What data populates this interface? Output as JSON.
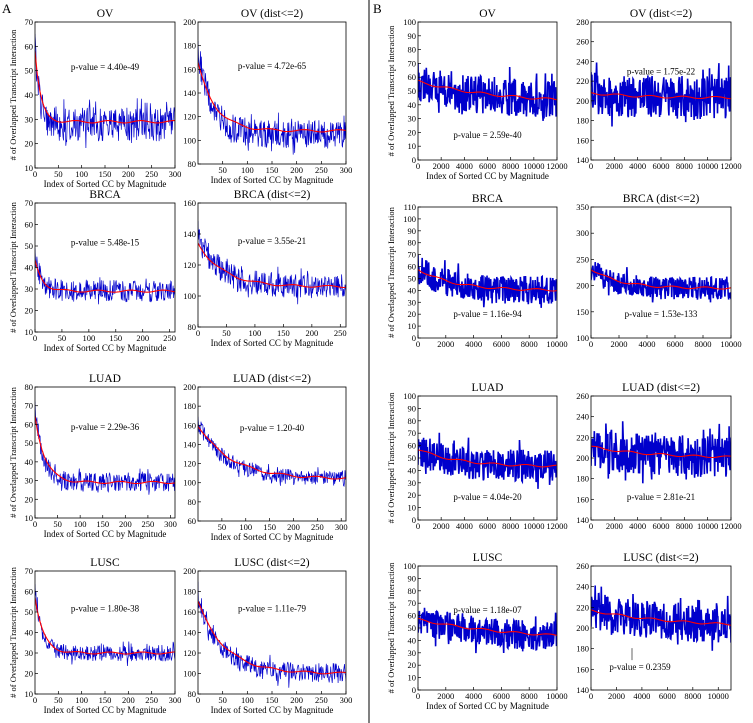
{
  "figure": {
    "panel_labels": [
      "A",
      "B"
    ],
    "shared_xlabel": "Index of Sorted CC by Magnitude",
    "shared_ylabel": "# of Overlapped Transcript Interaction",
    "colors": {
      "noise": "#0000cc",
      "trend": "#ff0000",
      "axis": "#000000"
    }
  },
  "chart_data": [
    {
      "id": "A-OV",
      "type": "line",
      "title": "OV",
      "xlabel": "Index of Sorted CC by Magnitude",
      "ylabel": "# of Overlapped Transcript Interaction",
      "xlim": [
        0,
        300
      ],
      "ylim": [
        10,
        70
      ],
      "xticks": [
        "0",
        "50",
        "100",
        "150",
        "200",
        "250",
        "300"
      ],
      "yticks": [
        "10",
        "20",
        "30",
        "40",
        "50",
        "60",
        "70"
      ],
      "annotation": "p-value = 4.40e-49",
      "series": [
        {
          "style": "noise",
          "start": 60,
          "end": 28,
          "decay": 10,
          "noise": 7
        },
        {
          "style": "trend",
          "start": 58,
          "end": 29,
          "decay": 12
        }
      ]
    },
    {
      "id": "A-OV-dist",
      "type": "line",
      "title": "OV (dist<=2)",
      "xlabel": "Index of Sorted CC by Magnitude",
      "ylabel": "",
      "xlim": [
        0,
        300
      ],
      "ylim": [
        80,
        200
      ],
      "xticks": [
        "50",
        "100",
        "150",
        "200",
        "250",
        "300"
      ],
      "yticks": [
        "80",
        "100",
        "120",
        "140",
        "160",
        "180",
        "200"
      ],
      "annotation": "p-value = 4.72e-65",
      "series": [
        {
          "style": "noise",
          "start": 175,
          "end": 105,
          "decay": 28,
          "noise": 12
        },
        {
          "style": "trend",
          "start": 165,
          "end": 108,
          "decay": 35
        }
      ]
    },
    {
      "id": "A-BRCA",
      "type": "line",
      "title": "BRCA",
      "xlabel": "Index of Sorted CC by Magnitude",
      "ylabel": "# of Overlapped Transcript Interaction",
      "xlim": [
        0,
        260
      ],
      "ylim": [
        10,
        70
      ],
      "xticks": [
        "0",
        "50",
        "100",
        "150",
        "200",
        "250"
      ],
      "yticks": [
        "10",
        "20",
        "30",
        "40",
        "50",
        "60",
        "70"
      ],
      "annotation": "p-value = 5.48e-15",
      "series": [
        {
          "style": "noise",
          "start": 45,
          "end": 29,
          "decay": 12,
          "noise": 5
        },
        {
          "style": "trend",
          "start": 43,
          "end": 29,
          "decay": 14
        }
      ]
    },
    {
      "id": "A-BRCA-dist",
      "type": "line",
      "title": "BRCA (dist<=2)",
      "xlabel": "Index of Sorted CC by Magnitude",
      "ylabel": "",
      "xlim": [
        0,
        260
      ],
      "ylim": [
        80,
        160
      ],
      "xticks": [
        "0",
        "50",
        "100",
        "150",
        "200",
        "250"
      ],
      "yticks": [
        "80",
        "100",
        "120",
        "140",
        "160"
      ],
      "annotation": "p-value = 3.55e-21",
      "series": [
        {
          "style": "noise",
          "start": 138,
          "end": 106,
          "decay": 40,
          "noise": 8
        },
        {
          "style": "trend",
          "start": 134,
          "end": 106,
          "decay": 45
        }
      ]
    },
    {
      "id": "A-LUAD",
      "type": "line",
      "title": "LUAD",
      "xlabel": "Index of Sorted CC by Magnitude",
      "ylabel": "# of Overlapped Transcript Interaction",
      "xlim": [
        0,
        310
      ],
      "ylim": [
        10,
        80
      ],
      "xticks": [
        "0",
        "50",
        "100",
        "150",
        "200",
        "250",
        "300"
      ],
      "yticks": [
        "10",
        "20",
        "30",
        "40",
        "50",
        "60",
        "70",
        "80"
      ],
      "annotation": "p-value = 2.29e-36",
      "series": [
        {
          "style": "noise",
          "start": 68,
          "end": 29,
          "decay": 18,
          "noise": 5
        },
        {
          "style": "trend",
          "start": 65,
          "end": 29,
          "decay": 22
        }
      ]
    },
    {
      "id": "A-LUAD-dist",
      "type": "line",
      "title": "LUAD (dist<=2)",
      "xlabel": "Index of Sorted CC by Magnitude",
      "ylabel": "",
      "xlim": [
        0,
        310
      ],
      "ylim": [
        60,
        200
      ],
      "xticks": [
        "50",
        "100",
        "150",
        "200",
        "250",
        "300"
      ],
      "yticks": [
        "60",
        "80",
        "100",
        "120",
        "140",
        "160",
        "180",
        "200"
      ],
      "annotation": "p-value = 1.20-40",
      "series": [
        {
          "style": "noise",
          "start": 162,
          "end": 104,
          "decay": 60,
          "noise": 8
        },
        {
          "style": "trend",
          "start": 160,
          "end": 104,
          "decay": 70
        }
      ]
    },
    {
      "id": "A-LUSC",
      "type": "line",
      "title": "LUSC",
      "xlabel": "Index of Sorted CC by Magnitude",
      "ylabel": "# of Overlapped Transcript Interaction",
      "xlim": [
        0,
        300
      ],
      "ylim": [
        10,
        70
      ],
      "xticks": [
        "0",
        "50",
        "100",
        "150",
        "200",
        "250",
        "300"
      ],
      "yticks": [
        "10",
        "20",
        "30",
        "40",
        "50",
        "60",
        "70"
      ],
      "annotation": "p-value = 1.80e-38",
      "series": [
        {
          "style": "noise",
          "start": 60,
          "end": 30,
          "decay": 15,
          "noise": 4
        },
        {
          "style": "trend",
          "start": 57,
          "end": 30,
          "decay": 18
        }
      ]
    },
    {
      "id": "A-LUSC-dist",
      "type": "line",
      "title": "LUSC (dist<=2)",
      "xlabel": "Index of Sorted CC by Magnitude",
      "ylabel": "",
      "xlim": [
        0,
        300
      ],
      "ylim": [
        80,
        200
      ],
      "xticks": [
        "0",
        "50",
        "100",
        "150",
        "200",
        "250",
        "300"
      ],
      "yticks": [
        "80",
        "100",
        "120",
        "140",
        "160",
        "180",
        "200"
      ],
      "annotation": "p-value = 1.11e-79",
      "series": [
        {
          "style": "noise",
          "start": 175,
          "end": 100,
          "decay": 45,
          "noise": 10
        },
        {
          "style": "trend",
          "start": 170,
          "end": 100,
          "decay": 55
        }
      ]
    },
    {
      "id": "B-OV",
      "type": "line",
      "title": "OV",
      "xlabel": "Index of Sorted CC by Magnitude",
      "ylabel": "# of Overlapped Transcript Interaction",
      "xlim": [
        0,
        12000
      ],
      "ylim": [
        0,
        100
      ],
      "xticks": [
        "0",
        "2000",
        "4000",
        "6000",
        "8000",
        "10000",
        "12000"
      ],
      "yticks": [
        "0",
        "10",
        "20",
        "30",
        "40",
        "50",
        "60",
        "70",
        "80",
        "90",
        "100"
      ],
      "annotation": "p-value = 2.59e-40",
      "series": [
        {
          "style": "noise",
          "start": 57,
          "end": 41,
          "decay": 6000,
          "noise": 14
        },
        {
          "style": "trend",
          "start": 57,
          "end": 41,
          "decay": 7000
        }
      ]
    },
    {
      "id": "B-OV-dist",
      "type": "line",
      "title": "OV (dist<=2)",
      "xlabel": "",
      "ylabel": "",
      "xlim": [
        0,
        12000
      ],
      "ylim": [
        140,
        280
      ],
      "xticks": [
        "0",
        "2000",
        "4000",
        "6000",
        "8000",
        "10000",
        "12000"
      ],
      "yticks": [
        "140",
        "160",
        "180",
        "200",
        "220",
        "240",
        "260",
        "280"
      ],
      "annotation": "p-value = 1.75e-22",
      "series": [
        {
          "style": "noise",
          "start": 208,
          "end": 203,
          "decay": 4000,
          "noise": 22
        },
        {
          "style": "trend",
          "start": 208,
          "end": 203,
          "decay": 4000
        }
      ]
    },
    {
      "id": "B-BRCA",
      "type": "line",
      "title": "BRCA",
      "xlabel": "",
      "ylabel": "# of Overlapped Transcript Interaction",
      "xlim": [
        0,
        10000
      ],
      "ylim": [
        0,
        110
      ],
      "xticks": [
        "0",
        "2000",
        "4000",
        "6000",
        "8000",
        "10000"
      ],
      "yticks": [
        "0",
        "10",
        "20",
        "30",
        "40",
        "50",
        "60",
        "70",
        "80",
        "90",
        "100",
        "110"
      ],
      "annotation": "p-value = 1.16e-94",
      "series": [
        {
          "style": "noise",
          "start": 58,
          "end": 40,
          "decay": 2000,
          "noise": 12
        },
        {
          "style": "trend",
          "start": 58,
          "end": 40,
          "decay": 2500
        }
      ]
    },
    {
      "id": "B-BRCA-dist",
      "type": "line",
      "title": "BRCA (dist<=2)",
      "xlabel": "",
      "ylabel": "",
      "xlim": [
        0,
        10000
      ],
      "ylim": [
        100,
        350
      ],
      "xticks": [
        "0",
        "2000",
        "4000",
        "6000",
        "8000",
        "10000"
      ],
      "yticks": [
        "100",
        "150",
        "200",
        "250",
        "300",
        "350"
      ],
      "annotation": "p-value = 1.53e-133",
      "series": [
        {
          "style": "noise",
          "start": 232,
          "end": 195,
          "decay": 1500,
          "noise": 22
        },
        {
          "style": "trend",
          "start": 232,
          "end": 195,
          "decay": 2000
        }
      ]
    },
    {
      "id": "B-LUAD",
      "type": "line",
      "title": "LUAD",
      "xlabel": "",
      "ylabel": "# of Overlapped Transcript Interaction",
      "xlim": [
        0,
        12000
      ],
      "ylim": [
        0,
        100
      ],
      "xticks": [
        "0",
        "2000",
        "4000",
        "6000",
        "8000",
        "10000",
        "12000"
      ],
      "yticks": [
        "0",
        "10",
        "20",
        "30",
        "40",
        "50",
        "60",
        "70",
        "80",
        "90",
        "100"
      ],
      "annotation": "p-value = 4.04e-20",
      "series": [
        {
          "style": "noise",
          "start": 57,
          "end": 43,
          "decay": 3000,
          "noise": 13
        },
        {
          "style": "trend",
          "start": 57,
          "end": 43,
          "decay": 3500
        }
      ]
    },
    {
      "id": "B-LUAD-dist",
      "type": "line",
      "title": "LUAD (dist<=2)",
      "xlabel": "",
      "ylabel": "",
      "xlim": [
        0,
        12000
      ],
      "ylim": [
        140,
        260
      ],
      "xticks": [
        "0",
        "2000",
        "4000",
        "6000",
        "8000",
        "10000",
        "12000"
      ],
      "yticks": [
        "140",
        "160",
        "180",
        "200",
        "220",
        "240",
        "260"
      ],
      "annotation": "p-value = 2.81e-21",
      "series": [
        {
          "style": "noise",
          "start": 211,
          "end": 200,
          "decay": 5000,
          "noise": 20
        },
        {
          "style": "trend",
          "start": 211,
          "end": 200,
          "decay": 5000
        }
      ]
    },
    {
      "id": "B-LUSC",
      "type": "line",
      "title": "LUSC",
      "xlabel": "Index of Sorted CC by Magnitude",
      "ylabel": "# of Overlapped Transcript Interaction",
      "xlim": [
        0,
        10000
      ],
      "ylim": [
        0,
        100
      ],
      "xticks": [
        "0",
        "2000",
        "4000",
        "6000",
        "8000",
        "10000"
      ],
      "yticks": [
        "0",
        "10",
        "20",
        "30",
        "40",
        "50",
        "60",
        "70",
        "80",
        "90",
        "100"
      ],
      "annotation": "p-value = 1.18e-07",
      "series": [
        {
          "style": "noise",
          "start": 57,
          "end": 40,
          "decay": 6000,
          "noise": 12
        },
        {
          "style": "trend",
          "start": 57,
          "end": 40,
          "decay": 7000
        }
      ]
    },
    {
      "id": "B-LUSC-dist",
      "type": "line",
      "title": "LUSC (dist<=2)",
      "xlabel": "",
      "ylabel": "",
      "xlim": [
        0,
        11000
      ],
      "ylim": [
        140,
        260
      ],
      "xticks": [
        "0",
        "2000",
        "4000",
        "6000",
        "8000",
        "10000"
      ],
      "yticks": [
        "140",
        "160",
        "180",
        "200",
        "220",
        "240",
        "260"
      ],
      "annotation": "p-value = 0.2359",
      "series": [
        {
          "style": "noise",
          "start": 217,
          "end": 200,
          "decay": 6000,
          "noise": 18
        },
        {
          "style": "trend",
          "start": 217,
          "end": 200,
          "decay": 7000
        }
      ]
    }
  ]
}
